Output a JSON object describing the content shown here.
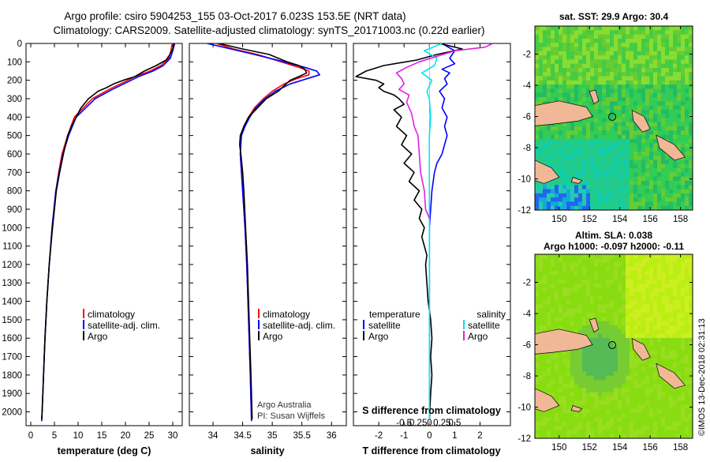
{
  "title_lines": [
    "Argo profile: csiro 5904253_155 03-Oct-2017 6.023S 153.5E (NRT data)",
    "Climatology: CARS2009. Satellite-adjusted climatology: synTS_20171003.nc (0.22d earlier)"
  ],
  "credit_lines": [
    "Argo Australia",
    "PI: Susan Wijffels"
  ],
  "stamp": "©IMOS 13-Dec-2018 02:31:13",
  "depth_axis": {
    "range": [
      0,
      2075
    ],
    "ticks": [
      0,
      100,
      200,
      300,
      400,
      500,
      600,
      700,
      800,
      900,
      1000,
      1100,
      1200,
      1300,
      1400,
      1500,
      1600,
      1700,
      1800,
      1900,
      2000
    ]
  },
  "colors": {
    "climatology": "#ff0000",
    "satellite": "#0000ff",
    "argo": "#000000",
    "sat_salinity": "#00e5ee",
    "clim_salinity": "#e020e0",
    "land": "#f0b896",
    "ocean_cool": "#22cc66",
    "ocean_warm": "#99ee22"
  },
  "chart_data": [
    {
      "type": "line",
      "id": "temperature",
      "xlabel": "temperature (deg C)",
      "xlim": [
        -1,
        32
      ],
      "xticks": [
        0,
        5,
        10,
        15,
        20,
        25,
        30
      ],
      "ylim": [
        0,
        2075
      ],
      "legend": [
        "climatology",
        "satellite-adj. clim.",
        "Argo"
      ],
      "series": [
        {
          "name": "climatology",
          "color": "#ff0000",
          "depth": [
            0,
            40,
            80,
            120,
            150,
            180,
            200,
            250,
            300,
            400,
            500,
            600,
            700,
            800,
            900,
            1000,
            1200,
            1400,
            1600,
            1800,
            2000,
            2050
          ],
          "values": [
            29.9,
            29.6,
            29.2,
            27.5,
            25.2,
            22.0,
            20.5,
            16.5,
            13.0,
            9.2,
            7.8,
            6.6,
            5.9,
            5.3,
            4.9,
            4.5,
            3.9,
            3.4,
            3.0,
            2.7,
            2.4,
            2.3
          ]
        },
        {
          "name": "satellite-adj. clim.",
          "color": "#0000ff",
          "depth": [
            0,
            40,
            80,
            120,
            150,
            180,
            200,
            250,
            300,
            400,
            500,
            600,
            700,
            800,
            900,
            1000,
            1200,
            1400,
            1600,
            1800,
            2000,
            2050
          ],
          "values": [
            30.4,
            30.0,
            29.5,
            28.0,
            25.8,
            22.8,
            21.2,
            17.2,
            13.6,
            9.6,
            8.0,
            6.8,
            6.0,
            5.3,
            4.9,
            4.5,
            3.9,
            3.4,
            3.0,
            2.7,
            2.4,
            2.3
          ]
        },
        {
          "name": "Argo",
          "color": "#000000",
          "depth": [
            0,
            30,
            60,
            90,
            120,
            150,
            180,
            200,
            220,
            240,
            260,
            300,
            350,
            400,
            450,
            500,
            600,
            700,
            800,
            1000,
            1200,
            1400,
            1600,
            1800,
            2000,
            2040
          ],
          "values": [
            30.3,
            30.0,
            29.4,
            28.6,
            26.5,
            24.0,
            22.0,
            19.5,
            17.5,
            16.0,
            14.2,
            12.2,
            10.6,
            9.6,
            8.6,
            7.8,
            6.9,
            6.1,
            5.4,
            4.6,
            3.9,
            3.4,
            3.0,
            2.7,
            2.4,
            2.3
          ]
        }
      ]
    },
    {
      "type": "line",
      "id": "salinity",
      "xlabel": "salinity",
      "xlim": [
        33.6,
        36.25
      ],
      "xticks": [
        34,
        34.5,
        35,
        35.5,
        36
      ],
      "xtick_labels": [
        "34",
        "34.5",
        "35",
        "35.5",
        "36"
      ],
      "ylim": [
        0,
        2075
      ],
      "legend": [
        "climatology",
        "satellite-adj. clim.",
        "Argo"
      ],
      "series": [
        {
          "name": "climatology",
          "color": "#ff0000",
          "depth": [
            0,
            30,
            60,
            100,
            130,
            150,
            170,
            190,
            220,
            260,
            300,
            350,
            400,
            450,
            500,
            600,
            800,
            1000,
            1200,
            1500,
            1800,
            2050
          ],
          "values": [
            34.05,
            34.35,
            34.75,
            35.15,
            35.45,
            35.62,
            35.62,
            35.42,
            35.2,
            35.0,
            34.85,
            34.7,
            34.6,
            34.52,
            34.47,
            34.46,
            34.5,
            34.54,
            34.57,
            34.6,
            34.63,
            34.65
          ]
        },
        {
          "name": "satellite-adj. clim.",
          "color": "#0000ff",
          "depth": [
            0,
            30,
            60,
            100,
            130,
            150,
            170,
            190,
            220,
            260,
            300,
            350,
            400,
            450,
            500,
            600,
            800,
            1000,
            1200,
            1500,
            1800,
            2050
          ],
          "values": [
            33.9,
            34.3,
            34.7,
            35.2,
            35.55,
            35.75,
            35.8,
            35.6,
            35.3,
            35.05,
            34.88,
            34.72,
            34.62,
            34.54,
            34.48,
            34.46,
            34.5,
            34.54,
            34.57,
            34.6,
            34.63,
            34.65
          ]
        },
        {
          "name": "Argo",
          "color": "#000000",
          "depth": [
            0,
            30,
            60,
            80,
            100,
            120,
            140,
            160,
            180,
            200,
            230,
            260,
            300,
            350,
            400,
            450,
            500,
            550,
            600,
            700,
            800,
            1000,
            1200,
            1500,
            1800,
            2040
          ],
          "values": [
            34.1,
            34.5,
            34.95,
            35.1,
            35.25,
            35.45,
            35.55,
            35.58,
            35.45,
            35.3,
            35.2,
            35.1,
            34.9,
            34.75,
            34.6,
            34.52,
            34.46,
            34.45,
            34.47,
            34.5,
            34.52,
            34.55,
            34.58,
            34.61,
            34.64,
            34.66
          ]
        }
      ]
    },
    {
      "type": "line",
      "id": "difference",
      "xlabel_top": "S difference from climatology",
      "xlabel": "T difference from climatology",
      "xlim": [
        -3,
        3.2
      ],
      "xticks": [
        -2,
        -1,
        0,
        1,
        2
      ],
      "s_ticks": [
        -1,
        -0.5,
        0,
        0.5,
        1
      ],
      "s_tick_labels": [
        "-0.5",
        "-0.25",
        "0",
        "0.25",
        "0.5"
      ],
      "ylim": [
        0,
        2075
      ],
      "legend_left_title": "temperature",
      "legend_right_title": "salinity",
      "legend_left": [
        "satellite",
        "Argo"
      ],
      "legend_right": [
        "satellite",
        "Argo"
      ],
      "series": [
        {
          "name": "T satellite",
          "color": "#0000ff",
          "depth": [
            0,
            40,
            80,
            110,
            140,
            160,
            190,
            220,
            260,
            300,
            350,
            400,
            450,
            500,
            550,
            600,
            650,
            700,
            800,
            900,
            1000,
            1500,
            2040
          ],
          "values": [
            0.5,
            1.0,
            0.8,
            1.0,
            0.5,
            0.8,
            0.6,
            0.7,
            0.4,
            0.6,
            0.5,
            0.7,
            0.6,
            0.7,
            0.6,
            0.5,
            0.3,
            0.2,
            0.1,
            0.05,
            0,
            0,
            0
          ]
        },
        {
          "name": "T Argo",
          "color": "#000000",
          "depth": [
            0,
            30,
            60,
            90,
            120,
            150,
            180,
            200,
            220,
            240,
            260,
            280,
            300,
            330,
            360,
            400,
            450,
            500,
            550,
            600,
            650,
            700,
            750,
            800,
            850,
            900,
            950,
            1000,
            1050,
            1100,
            1150,
            1200,
            1300,
            1400,
            1500,
            1600,
            1700,
            1800,
            1900,
            2040
          ],
          "values": [
            0.4,
            1.3,
            0.3,
            -0.5,
            -1.8,
            -2.5,
            -2.9,
            -2.1,
            -1.8,
            -2.0,
            -1.8,
            -1.4,
            -1.2,
            -1.0,
            -1.4,
            -1.1,
            -1.3,
            -0.9,
            -1.1,
            -0.7,
            -1.0,
            -0.6,
            -0.8,
            -0.4,
            -0.6,
            -0.3,
            -0.4,
            -0.2,
            -0.3,
            -0.2,
            -0.1,
            -0.15,
            -0.1,
            -0.05,
            0.05,
            0.1,
            0.05,
            0.1,
            0.05,
            0
          ]
        },
        {
          "name": "S satellite",
          "color": "#00e5ee",
          "depth": [
            0,
            40,
            80,
            120,
            160,
            200,
            260,
            300,
            400,
            500,
            700,
            1000,
            1500,
            2040
          ],
          "values": [
            0.5,
            -0.2,
            0.3,
            0.2,
            -0.3,
            0.1,
            -0.1,
            0.0,
            0.05,
            0.0,
            0.0,
            0.0,
            0.0,
            0.0
          ]
        },
        {
          "name": "S Argo",
          "color": "#e020e0",
          "depth": [
            0,
            20,
            40,
            70,
            100,
            130,
            160,
            190,
            220,
            250,
            280,
            320,
            380,
            450,
            500,
            600,
            700,
            800,
            900,
            950
          ],
          "values": [
            2.5,
            2.2,
            1.0,
            0.3,
            -0.4,
            -0.9,
            -1.3,
            -1.1,
            -1.0,
            -1.2,
            -0.8,
            -0.9,
            -0.7,
            -0.6,
            -0.45,
            -0.4,
            -0.35,
            -0.2,
            -0.15,
            0.0
          ]
        }
      ]
    },
    {
      "type": "heatmap",
      "id": "sst-map",
      "title": "sat. SST: 29.9 Argo: 30.4",
      "xlim": [
        148.4,
        158.8
      ],
      "ylim": [
        -12,
        -0.2
      ],
      "xticks": [
        150,
        152,
        154,
        156,
        158
      ],
      "yticks": [
        -2,
        -4,
        -6,
        -8,
        -10,
        -12
      ],
      "float_position": [
        153.5,
        -6.02
      ]
    },
    {
      "type": "heatmap",
      "id": "sla-map",
      "title_lines": [
        "Altim. SLA: 0.038",
        "Argo h1000: -0.097 h2000: -0.11"
      ],
      "xlim": [
        148.4,
        158.8
      ],
      "ylim": [
        -12,
        -0.2
      ],
      "xticks": [
        150,
        152,
        154,
        156,
        158
      ],
      "yticks": [
        -2,
        -4,
        -6,
        -8,
        -10,
        -12
      ],
      "float_position": [
        153.5,
        -6.02
      ]
    }
  ]
}
